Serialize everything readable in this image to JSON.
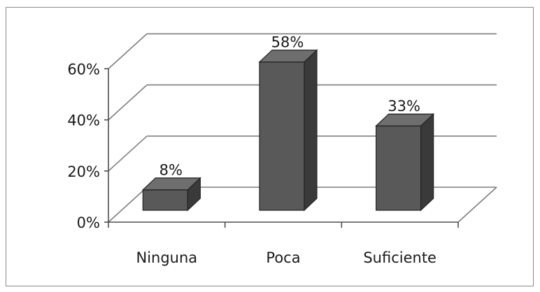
{
  "chart_data": {
    "type": "bar",
    "style": "3d-column",
    "categories": [
      "Ninguna",
      "Poca",
      "Suficiente"
    ],
    "values": [
      8,
      58,
      33
    ],
    "data_labels": [
      "8%",
      "58%",
      "33%"
    ],
    "y_ticks": [
      0,
      20,
      40,
      60
    ],
    "y_tick_labels": [
      "0%",
      "20%",
      "40%",
      "60%"
    ],
    "ylim": [
      0,
      60
    ],
    "grid": true,
    "legend": false,
    "bar_color": "#595959",
    "bar_side_color": "#3a3a3a",
    "bar_top_color": "#6e6e6e",
    "gridline_color": "#7f7f7f"
  }
}
